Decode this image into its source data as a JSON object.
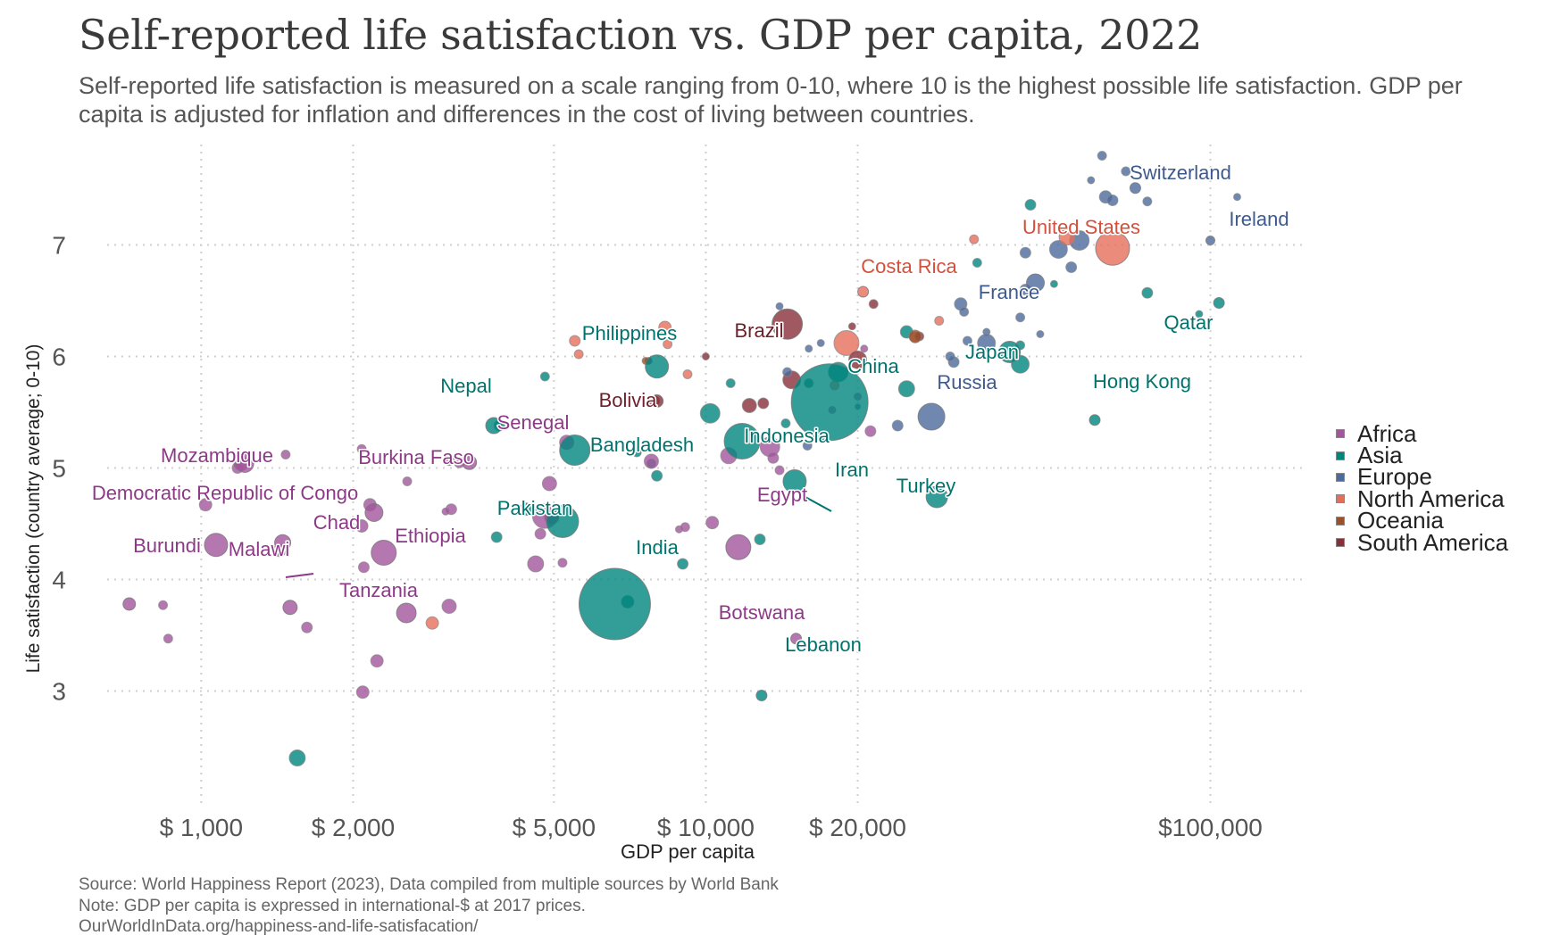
{
  "title": "Self-reported life satisfaction vs. GDP per capita, 2022",
  "subtitle": "Self-reported life satisfaction is measured on a scale ranging from 0-10, where 10 is the highest possible life satisfaction. GDP per capita is adjusted for inflation and differences in the cost of living between countries.",
  "footer": {
    "source": "Source: World Happiness Report (2023), Data compiled from multiple sources by World Bank",
    "note": "Note: GDP per capita is expressed in international-$ at 2017 prices.",
    "url": "OurWorldInData.org/happiness-and-life-satisfacation/"
  },
  "colors": {
    "Africa": "#a2559c",
    "Asia": "#00847e",
    "Europe": "#4c6a9c",
    "North America": "#e56e5a",
    "Oceania": "#9a5129",
    "South America": "#883039"
  },
  "label_colors": {
    "Africa": "#8c3a86",
    "Asia": "#00736d",
    "Europe": "#3e5a8c",
    "North America": "#d2503c",
    "Oceania": "#8a4420",
    "South America": "#6e1f2a"
  },
  "chart_data": {
    "type": "scatter",
    "xlabel": "GDP per capita",
    "ylabel": "Life satisfaction (country average; 0-10)",
    "x_scale": "log",
    "xlim": [
      600,
      150000
    ],
    "ylim": [
      2.1,
      7.9
    ],
    "x_ticks": [
      1000,
      2000,
      5000,
      10000,
      20000,
      100000
    ],
    "x_tick_labels": [
      "$ 1,000",
      "$ 2,000",
      "$ 5,000",
      "$ 10,000",
      "$ 20,000",
      "$100,000"
    ],
    "y_ticks": [
      3,
      4,
      5,
      6,
      7
    ],
    "y_tick_labels": [
      "3",
      "4",
      "5",
      "6",
      "7"
    ],
    "grid": true,
    "legend": "right",
    "size_encoding": "population",
    "legend_entries": [
      "Africa",
      "Asia",
      "Europe",
      "North America",
      "Oceania",
      "South America"
    ],
    "points": [
      {
        "label": "Switzerland",
        "region": "Europe",
        "x": 71000,
        "y": 7.51,
        "r": 6
      },
      {
        "label": "Ireland",
        "region": "Europe",
        "x": 100000,
        "y": 7.04,
        "r": 5
      },
      {
        "label": "United States",
        "region": "North America",
        "x": 64000,
        "y": 6.97,
        "r": 19
      },
      {
        "label": "Costa Rica",
        "region": "North America",
        "x": 20500,
        "y": 6.58,
        "r": 6
      },
      {
        "label": "France",
        "region": "Europe",
        "x": 45000,
        "y": 6.66,
        "r": 10
      },
      {
        "label": "Qatar",
        "region": "Asia",
        "x": 104000,
        "y": 6.48,
        "r": 6
      },
      {
        "label": "Japan",
        "region": "Asia",
        "x": 40000,
        "y": 6.04,
        "r": 12
      },
      {
        "label": "Brazil",
        "region": "South America",
        "x": 14500,
        "y": 6.29,
        "r": 17
      },
      {
        "label": "Philippines",
        "region": "Asia",
        "x": 8000,
        "y": 5.91,
        "r": 13
      },
      {
        "label": "China",
        "region": "Asia",
        "x": 17600,
        "y": 5.59,
        "r": 43
      },
      {
        "label": "Russia",
        "region": "Europe",
        "x": 28000,
        "y": 5.46,
        "r": 15
      },
      {
        "label": "Hong Kong",
        "region": "Asia",
        "x": 59000,
        "y": 5.43,
        "r": 6
      },
      {
        "label": "Nepal",
        "region": "Asia",
        "x": 3800,
        "y": 5.38,
        "r": 9
      },
      {
        "label": "Bolivia",
        "region": "South America",
        "x": 8000,
        "y": 5.6,
        "r": 7
      },
      {
        "label": "Senegal",
        "region": "Africa",
        "x": 3400,
        "y": 5.05,
        "r": 8
      },
      {
        "label": "Bangladesh",
        "region": "Asia",
        "x": 5500,
        "y": 5.16,
        "r": 17
      },
      {
        "label": "Indonesia",
        "region": "Asia",
        "x": 11800,
        "y": 5.24,
        "r": 20
      },
      {
        "label": "Iran",
        "region": "Asia",
        "x": 15000,
        "y": 4.88,
        "r": 13
      },
      {
        "label": "Turkey",
        "region": "Asia",
        "x": 28700,
        "y": 4.74,
        "r": 12
      },
      {
        "label": "Mozambique",
        "region": "Africa",
        "x": 1220,
        "y": 5.04,
        "r": 10
      },
      {
        "label": "Burkina Faso",
        "region": "Africa",
        "x": 2200,
        "y": 4.6,
        "r": 10
      },
      {
        "label": "Democratic Republic of Congo",
        "region": "Africa",
        "x": 1070,
        "y": 4.31,
        "r": 13
      },
      {
        "label": "Chad",
        "region": "Africa",
        "x": 1450,
        "y": 4.33,
        "r": 9
      },
      {
        "label": "Ethiopia",
        "region": "Africa",
        "x": 2300,
        "y": 4.24,
        "r": 14
      },
      {
        "label": "Pakistan",
        "region": "Asia",
        "x": 5200,
        "y": 4.52,
        "r": 18
      },
      {
        "label": "Egypt",
        "region": "Africa",
        "x": 11600,
        "y": 4.29,
        "r": 14
      },
      {
        "label": "India",
        "region": "Asia",
        "x": 6600,
        "y": 3.78,
        "r": 40
      },
      {
        "label": "Burundi",
        "region": "Africa",
        "x": 720,
        "y": 3.78,
        "r": 7
      },
      {
        "label": "Malawi",
        "region": "Africa",
        "x": 1500,
        "y": 3.75,
        "r": 8
      },
      {
        "label": "Tanzania",
        "region": "Africa",
        "x": 2550,
        "y": 3.7,
        "r": 11
      },
      {
        "label": "Botswana",
        "region": "Africa",
        "x": 15100,
        "y": 3.47,
        "r": 6
      },
      {
        "label": "Lebanon",
        "region": "Asia",
        "x": 12900,
        "y": 2.96,
        "r": 6
      }
    ]
  }
}
